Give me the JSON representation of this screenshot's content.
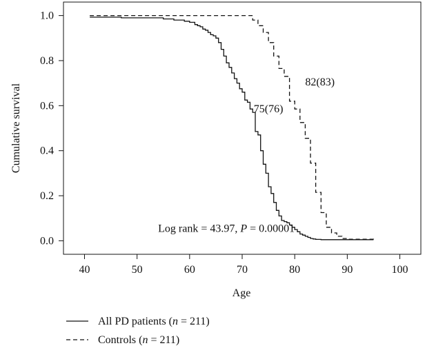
{
  "chart_data": {
    "type": "line",
    "xlabel": "Age",
    "ylabel": "Cumulative survival",
    "xlim": [
      36,
      104
    ],
    "ylim": [
      -0.06,
      1.06
    ],
    "xticks": [
      40,
      50,
      60,
      70,
      80,
      90,
      100
    ],
    "yticks": [
      0.0,
      0.2,
      0.4,
      0.6,
      0.8,
      1.0
    ],
    "xtick_labels": [
      "40",
      "50",
      "60",
      "70",
      "80",
      "90",
      "100"
    ],
    "ytick_labels": [
      "0.0",
      "0.2",
      "0.4",
      "0.6",
      "0.8",
      "1.0"
    ],
    "grid": false,
    "legend_position": "bottom-left",
    "series": [
      {
        "name": "All PD patients",
        "n_label": "n = 211",
        "line_style": "solid",
        "x": [
          41,
          47,
          55,
          57,
          59,
          60,
          61,
          61.5,
          62,
          62.5,
          63,
          63.5,
          64,
          64.5,
          65,
          65.5,
          66,
          66.5,
          67,
          67.5,
          68,
          68.5,
          69,
          69.5,
          70,
          70.5,
          71,
          71.5,
          72,
          72.5,
          73,
          73.5,
          74,
          74.5,
          75,
          75.5,
          76,
          76.5,
          77,
          77.5,
          78,
          78.5,
          79,
          79.5,
          80,
          80.5,
          81,
          81.5,
          82,
          82.5,
          83,
          83.5,
          84,
          85,
          86,
          87,
          87.5,
          88,
          88.5,
          89,
          90,
          95
        ],
        "y": [
          0.993,
          0.99,
          0.985,
          0.98,
          0.975,
          0.97,
          0.96,
          0.955,
          0.95,
          0.94,
          0.935,
          0.925,
          0.915,
          0.91,
          0.9,
          0.88,
          0.85,
          0.82,
          0.79,
          0.77,
          0.745,
          0.72,
          0.7,
          0.675,
          0.66,
          0.625,
          0.615,
          0.585,
          0.57,
          0.485,
          0.47,
          0.4,
          0.34,
          0.3,
          0.24,
          0.21,
          0.17,
          0.135,
          0.11,
          0.09,
          0.085,
          0.08,
          0.07,
          0.06,
          0.05,
          0.04,
          0.03,
          0.025,
          0.02,
          0.015,
          0.01,
          0.008,
          0.006,
          0.005,
          0.005,
          0.005,
          0.005,
          0.005,
          0.005,
          0.005,
          0.005,
          0.005
        ]
      },
      {
        "name": "Controls",
        "n_label": "n = 211",
        "line_style": "dashed",
        "x": [
          41,
          72,
          73,
          74,
          75,
          76,
          77,
          78,
          79,
          80,
          81,
          82,
          83,
          84,
          85,
          86,
          87,
          88,
          89,
          90,
          95
        ],
        "y": [
          1.0,
          0.98,
          0.955,
          0.925,
          0.88,
          0.82,
          0.765,
          0.73,
          0.62,
          0.585,
          0.525,
          0.455,
          0.345,
          0.215,
          0.125,
          0.06,
          0.035,
          0.02,
          0.01,
          0.007,
          0.005
        ]
      }
    ],
    "annotations": [
      {
        "text": "82(83)",
        "x": 82,
        "y": 0.69
      },
      {
        "text": "75(76)",
        "x": 75,
        "y": 0.57
      },
      {
        "text": "Log rank = 43.97, ",
        "italic_part": "P",
        "suffix": " = 0.00001",
        "x": 67,
        "y": 0.04
      }
    ]
  },
  "legend": {
    "items": [
      {
        "prefix": "All PD patients (",
        "n_symbol": "n",
        "suffix": " = 211)",
        "line_style": "solid"
      },
      {
        "prefix": "Controls (",
        "n_symbol": "n",
        "suffix": " = 211)",
        "line_style": "dashed"
      }
    ]
  }
}
